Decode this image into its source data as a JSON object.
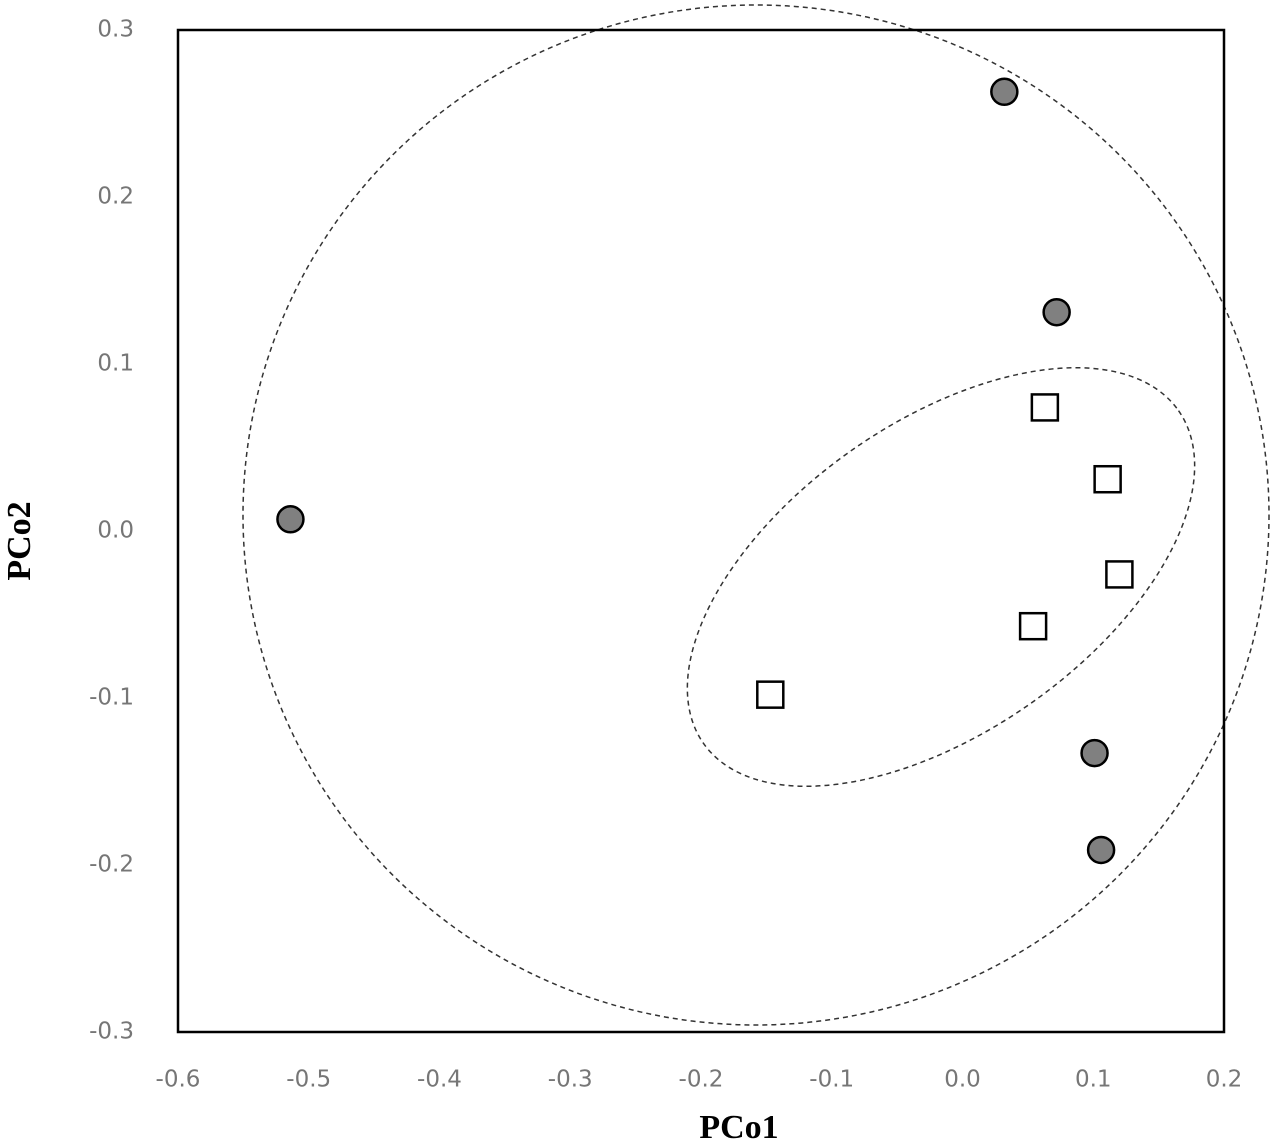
{
  "chart_data": {
    "type": "scatter",
    "x_label": "PCo1",
    "y_label": "PCo2",
    "xlim": [
      -0.6,
      0.2
    ],
    "ylim": [
      -0.3,
      0.3
    ],
    "xticks": [
      -0.6,
      -0.5,
      -0.4,
      -0.3,
      -0.2,
      -0.1,
      {
        "value": 0,
        "label": "0.0"
      },
      0.1,
      0.2
    ],
    "yticks": [
      -0.3,
      -0.2,
      -0.1,
      {
        "value": 0,
        "label": "0.0"
      },
      0.1,
      0.2,
      0.3
    ],
    "series": [
      {
        "marker": "circle",
        "color": "#808080",
        "x": [
          0.032,
          0.072,
          -0.514,
          0.101,
          0.106
        ],
        "values": [
          0.263,
          0.131,
          0.007,
          -0.133,
          -0.191
        ]
      },
      {
        "marker": "square",
        "color": "#ffffff",
        "x": [
          0.063,
          0.111,
          0.12,
          0.054,
          -0.147
        ],
        "values": [
          0.074,
          0.031,
          -0.026,
          -0.057,
          -0.098
        ]
      }
    ]
  }
}
